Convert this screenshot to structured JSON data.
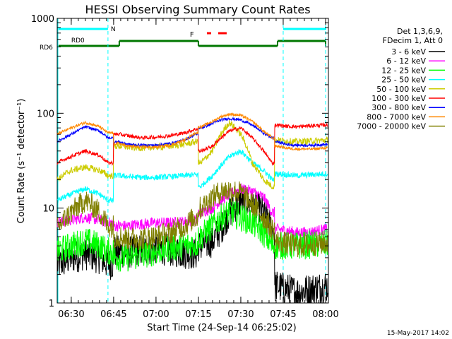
{
  "chart_data": {
    "type": "line",
    "title": "HESSI Observing Summary Count Rates",
    "xlabel": "Start Time (24-Sep-14 06:25:02)",
    "ylabel": "Count Rate (s⁻¹ detector⁻¹)",
    "y_scale": "log",
    "ylim": [
      1,
      1000
    ],
    "xlim": [
      "06:25:02",
      "08:01:00"
    ],
    "y_ticks": [
      "1",
      "10",
      "100",
      "1000"
    ],
    "x_ticks": [
      "06:30",
      "06:45",
      "07:00",
      "07:15",
      "07:30",
      "07:45",
      "08:00"
    ],
    "legend": {
      "header": [
        "Det 1,3,6,9,",
        "FDecim 1, Att 0"
      ],
      "position": "right"
    },
    "footer_date": "15-May-2017 14:02",
    "flags": {
      "rd0_label": "RD0",
      "rd6_label": "RD6",
      "n_label": "N",
      "f_label": "F"
    },
    "x": [
      "06:25",
      "06:30",
      "06:35",
      "06:40",
      "06:43",
      "06:47",
      "06:50",
      "06:55",
      "07:00",
      "07:05",
      "07:10",
      "07:14",
      "07:16",
      "07:20",
      "07:23",
      "07:26",
      "07:30",
      "07:34",
      "07:38",
      "07:41",
      "07:43",
      "07:46",
      "07:50",
      "07:55",
      "08:00"
    ],
    "series": [
      {
        "name": "3 - 6 keV",
        "color": "#000000",
        "values": [
          2.5,
          3.0,
          3.3,
          3.0,
          2.6,
          3.5,
          3.4,
          3.6,
          3.8,
          3.6,
          3.4,
          3.3,
          4.0,
          4.5,
          6.0,
          9.0,
          12.0,
          11.0,
          9.0,
          6.0,
          1.5,
          1.4,
          1.3,
          1.4,
          1.5
        ]
      },
      {
        "name": "6 - 12 keV",
        "color": "#ff00ff",
        "values": [
          7.0,
          7.5,
          8.0,
          7.5,
          7.0,
          6.5,
          6.5,
          6.8,
          7.0,
          7.0,
          7.2,
          7.5,
          9.0,
          10.0,
          12.0,
          14.0,
          16.0,
          15.0,
          13.0,
          9.0,
          6.0,
          5.8,
          5.5,
          5.6,
          6.0
        ]
      },
      {
        "name": "12 - 25 keV",
        "color": "#00ff00",
        "values": [
          3.5,
          4.0,
          4.5,
          4.0,
          3.5,
          3.0,
          3.0,
          3.2,
          3.5,
          3.8,
          4.0,
          4.2,
          5.0,
          6.5,
          8.0,
          9.0,
          8.0,
          7.0,
          5.5,
          4.0,
          4.0,
          4.0,
          4.0,
          4.1,
          4.2
        ]
      },
      {
        "name": "25 - 50 keV",
        "color": "#00ffff",
        "values": [
          12.0,
          14.0,
          16.0,
          14.0,
          12.0,
          22.0,
          21.5,
          21.0,
          21.0,
          21.5,
          22.0,
          22.5,
          17.0,
          22.0,
          28.0,
          35.0,
          40.0,
          30.0,
          25.0,
          20.0,
          23.0,
          22.5,
          22.0,
          22.5,
          23.0
        ]
      },
      {
        "name": "50 - 100 keV",
        "color": "#cccc00",
        "values": [
          20.0,
          25.0,
          27.0,
          25.0,
          22.0,
          45.0,
          44.0,
          43.0,
          44.0,
          45.0,
          47.0,
          50.0,
          30.0,
          40.0,
          60.0,
          80.0,
          60.0,
          30.0,
          20.0,
          17.0,
          52.0,
          51.0,
          50.0,
          51.0,
          52.0
        ]
      },
      {
        "name": "100 - 300 keV",
        "color": "#ff0000",
        "values": [
          30.0,
          35.0,
          40.0,
          36.0,
          30.0,
          60.0,
          58.0,
          55.0,
          56.0,
          58.0,
          62.0,
          68.0,
          40.0,
          45.0,
          55.0,
          65.0,
          70.0,
          55.0,
          40.0,
          30.0,
          75.0,
          73.0,
          72.0,
          74.0,
          75.0
        ]
      },
      {
        "name": "300 - 800 keV",
        "color": "#0000ff",
        "values": [
          50.0,
          60.0,
          72.0,
          65.0,
          55.0,
          50.0,
          47.0,
          46.0,
          46.0,
          48.0,
          52.0,
          60.0,
          70.0,
          78.0,
          85.0,
          88.0,
          85.0,
          75.0,
          62.0,
          55.0,
          50.0,
          47.0,
          46.0,
          46.0,
          47.0
        ]
      },
      {
        "name": "800 - 7000 keV",
        "color": "#ff8800",
        "values": [
          60.0,
          70.0,
          80.0,
          72.0,
          62.0,
          48.0,
          45.0,
          44.0,
          44.0,
          46.0,
          52.0,
          62.0,
          72.0,
          82.0,
          92.0,
          98.0,
          95.0,
          82.0,
          65.0,
          55.0,
          45.0,
          43.0,
          42.0,
          42.0,
          43.0
        ]
      },
      {
        "name": "7000 - 20000 keV",
        "color": "#808000",
        "values": [
          6.0,
          9.0,
          12.0,
          9.0,
          6.5,
          5.0,
          4.8,
          4.8,
          5.0,
          5.5,
          6.5,
          8.0,
          10.0,
          13.0,
          15.0,
          15.5,
          14.5,
          11.0,
          8.0,
          6.0,
          4.5,
          4.2,
          4.0,
          4.1,
          4.3
        ]
      }
    ]
  }
}
